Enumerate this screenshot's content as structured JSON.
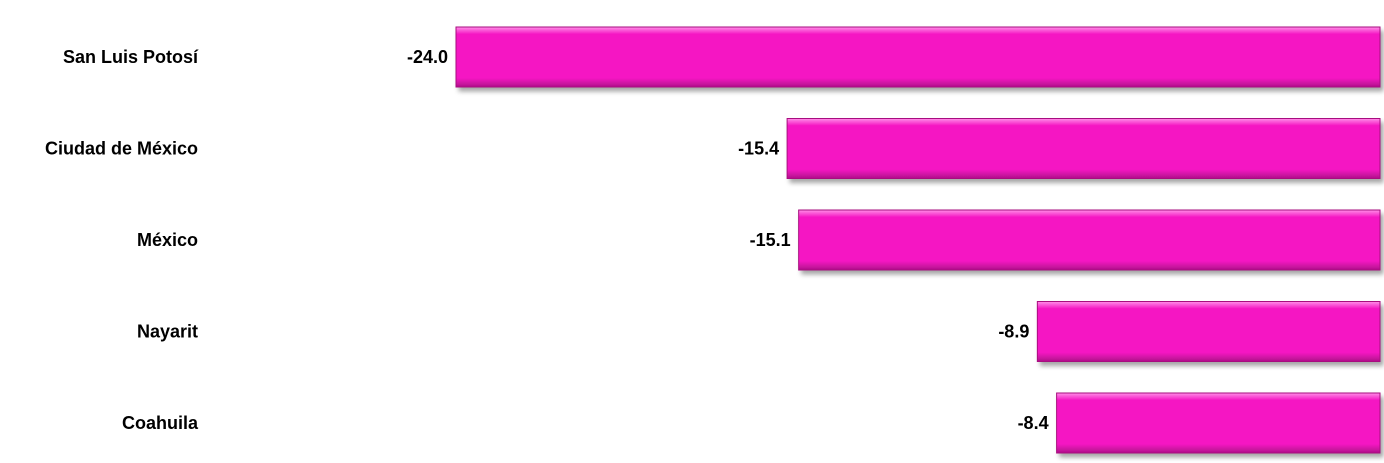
{
  "chart_data": {
    "type": "bar",
    "orientation": "horizontal",
    "categories": [
      "San Luis Potosí",
      "Ciudad de México",
      "México",
      "Nayarit",
      "Coahuila"
    ],
    "values": [
      -24.0,
      -15.4,
      -15.1,
      -8.9,
      -8.4
    ],
    "value_labels": [
      "-24.0",
      "-15.4",
      "-15.1",
      "-8.9",
      "-8.4"
    ],
    "xlim": [
      -24.0,
      0
    ],
    "grid": false,
    "legend": "none",
    "colors": {
      "bar": "#f516c3",
      "bar_highlight": "#ff8fe8",
      "bar_shadow": "#a8107f",
      "text": "#000000"
    }
  }
}
